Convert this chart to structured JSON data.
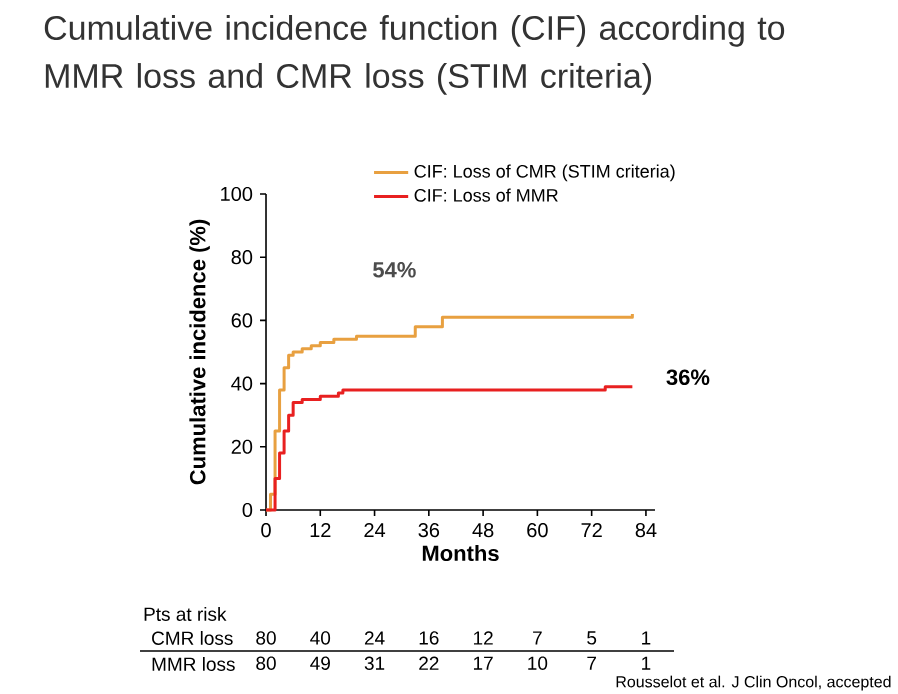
{
  "chart_data": {
    "type": "step",
    "title": "Cumulative incidence function (CIF) according to MMR loss and CMR loss (STIM criteria)",
    "xlabel": "Months",
    "ylabel": "Cumulative incidence (%)",
    "series": [
      {
        "name": "CIF: Loss of CMR (STIM criteria)",
        "color": "#e8a040",
        "x": [
          0,
          1,
          2,
          3,
          4,
          5,
          6,
          8,
          10,
          12,
          15,
          20,
          32,
          33,
          38,
          39,
          50,
          60,
          70,
          81
        ],
        "values": [
          0,
          5,
          25,
          38,
          45,
          49,
          50,
          51,
          52,
          53,
          54,
          55,
          55,
          58,
          58,
          61,
          61,
          61,
          61,
          62
        ]
      },
      {
        "name": "CIF: Loss of MMR",
        "color": "#e82020",
        "x": [
          0,
          1,
          2,
          3,
          4,
          5,
          6,
          8,
          12,
          16,
          17,
          40,
          60,
          75,
          81
        ],
        "values": [
          0,
          0,
          10,
          18,
          25,
          30,
          34,
          35,
          36,
          37,
          38,
          38,
          38,
          39,
          39
        ]
      }
    ],
    "xlim": [
      0,
      86
    ],
    "ylim": [
      0,
      100
    ],
    "xticks": [
      0,
      12,
      24,
      36,
      48,
      60,
      72,
      84
    ],
    "yticks": [
      0,
      20,
      40,
      60,
      80,
      100
    ],
    "grid": false,
    "legend": "top right",
    "marker": "none",
    "line_style": "solid",
    "annotations": [
      "54%",
      "36%",
      "Pts at risk",
      "CMR loss",
      "80",
      "40",
      "24",
      "16",
      "12",
      "7",
      "5",
      "1",
      "MMR loss",
      "80",
      "49",
      "31",
      "22",
      "17",
      "10",
      "7",
      "1",
      "Rousselot et al. J Clin Oncol, accepted"
    ]
  }
}
